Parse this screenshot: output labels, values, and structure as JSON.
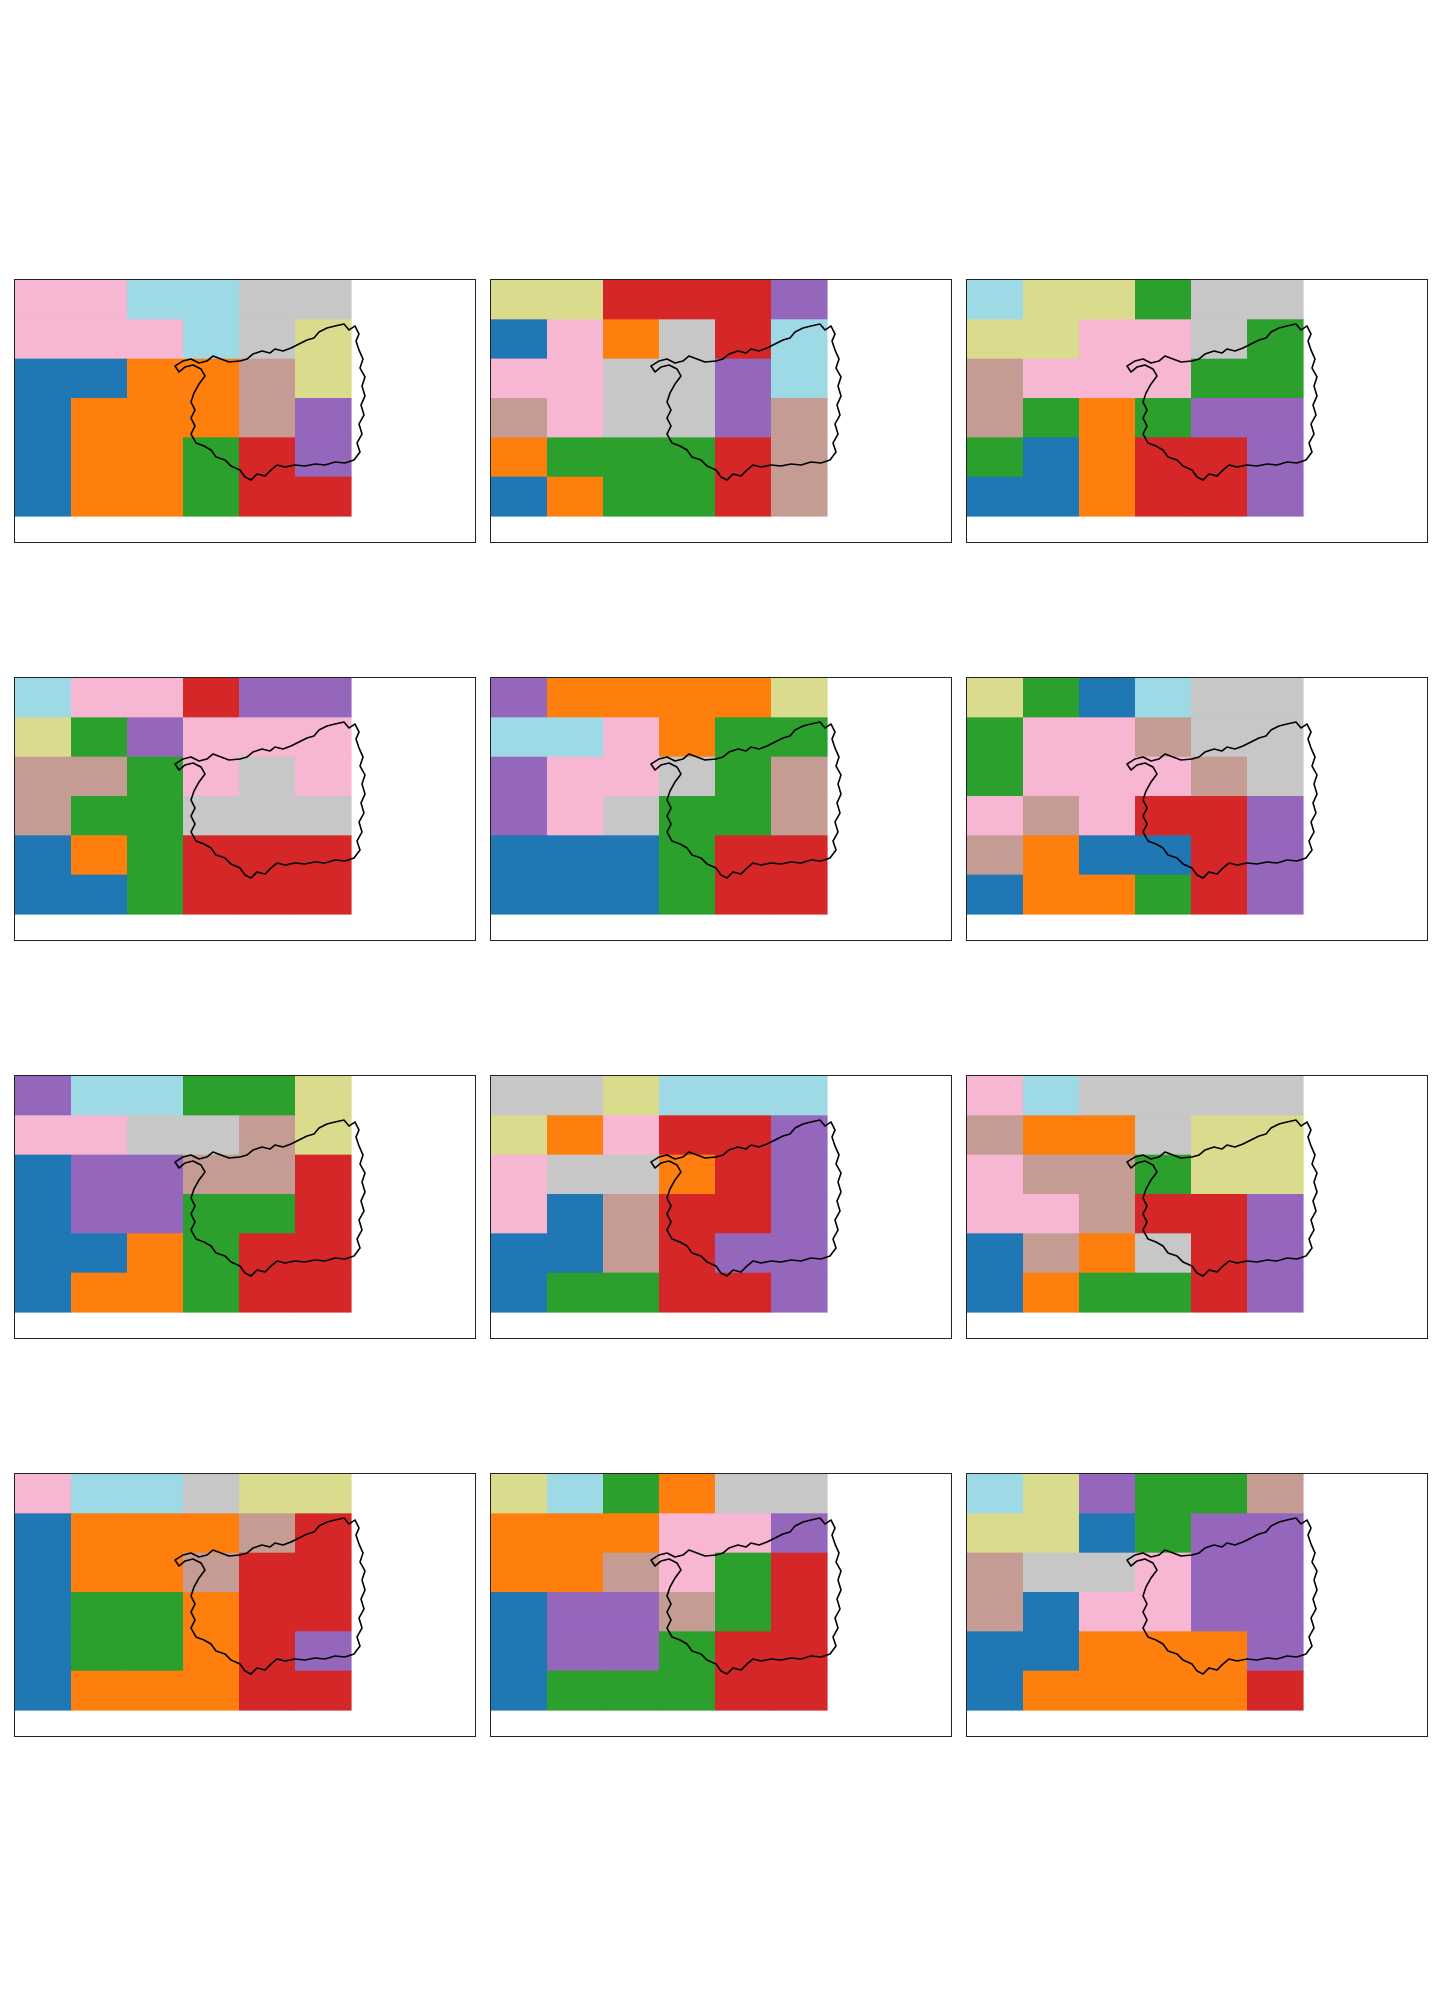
{
  "figure": {
    "rows": 4,
    "cols": 3,
    "outline_color": "#000000",
    "palette": {
      "blue": "#1f77b4",
      "orange": "#ff7f0e",
      "green": "#2ca02c",
      "red": "#d62728",
      "purple": "#9467bd",
      "brown": "#c49c94",
      "pink": "#f7b6d2",
      "gray": "#c7c7c7",
      "olive": "#dbdb8d",
      "cyan": "#9edae5"
    }
  },
  "panels": [
    {
      "colors": [
        "pink",
        "pink",
        "cyan",
        "cyan",
        "gray",
        "gray",
        "pink",
        "pink",
        "pink",
        "cyan",
        "gray",
        "olive",
        "blue",
        "blue",
        "orange",
        "orange",
        "brown",
        "olive",
        "blue",
        "orange",
        "orange",
        "orange",
        "brown",
        "purple",
        "blue",
        "orange",
        "orange",
        "green",
        "red",
        "purple",
        "blue",
        "orange",
        "orange",
        "green",
        "red",
        "red"
      ]
    },
    {
      "colors": [
        "olive",
        "olive",
        "red",
        "red",
        "red",
        "purple",
        "blue",
        "pink",
        "orange",
        "gray",
        "red",
        "cyan",
        "pink",
        "pink",
        "gray",
        "gray",
        "purple",
        "cyan",
        "brown",
        "pink",
        "gray",
        "gray",
        "purple",
        "brown",
        "orange",
        "green",
        "green",
        "green",
        "red",
        "brown",
        "blue",
        "orange",
        "green",
        "green",
        "red",
        "brown"
      ]
    },
    {
      "colors": [
        "cyan",
        "olive",
        "olive",
        "green",
        "gray",
        "gray",
        "olive",
        "olive",
        "pink",
        "pink",
        "gray",
        "green",
        "brown",
        "pink",
        "pink",
        "pink",
        "green",
        "green",
        "brown",
        "green",
        "orange",
        "green",
        "purple",
        "purple",
        "green",
        "blue",
        "orange",
        "red",
        "red",
        "purple",
        "blue",
        "blue",
        "orange",
        "red",
        "red",
        "purple"
      ]
    },
    {
      "colors": [
        "cyan",
        "pink",
        "pink",
        "red",
        "purple",
        "purple",
        "olive",
        "green",
        "purple",
        "pink",
        "pink",
        "pink",
        "brown",
        "brown",
        "green",
        "pink",
        "gray",
        "pink",
        "brown",
        "green",
        "green",
        "gray",
        "gray",
        "gray",
        "blue",
        "orange",
        "green",
        "red",
        "red",
        "red",
        "blue",
        "blue",
        "green",
        "red",
        "red",
        "red"
      ]
    },
    {
      "colors": [
        "purple",
        "orange",
        "orange",
        "orange",
        "orange",
        "olive",
        "cyan",
        "cyan",
        "pink",
        "orange",
        "green",
        "green",
        "purple",
        "pink",
        "pink",
        "gray",
        "green",
        "brown",
        "purple",
        "pink",
        "gray",
        "green",
        "green",
        "brown",
        "blue",
        "blue",
        "blue",
        "green",
        "red",
        "red",
        "blue",
        "blue",
        "blue",
        "green",
        "red",
        "red"
      ]
    },
    {
      "colors": [
        "olive",
        "green",
        "blue",
        "cyan",
        "gray",
        "gray",
        "green",
        "pink",
        "pink",
        "brown",
        "gray",
        "gray",
        "green",
        "pink",
        "pink",
        "pink",
        "brown",
        "gray",
        "pink",
        "brown",
        "pink",
        "red",
        "red",
        "purple",
        "brown",
        "orange",
        "blue",
        "blue",
        "red",
        "purple",
        "blue",
        "orange",
        "orange",
        "green",
        "red",
        "purple"
      ]
    },
    {
      "colors": [
        "purple",
        "cyan",
        "cyan",
        "green",
        "green",
        "olive",
        "pink",
        "pink",
        "gray",
        "gray",
        "brown",
        "olive",
        "blue",
        "purple",
        "purple",
        "brown",
        "brown",
        "red",
        "blue",
        "purple",
        "purple",
        "green",
        "green",
        "red",
        "blue",
        "blue",
        "orange",
        "green",
        "red",
        "red",
        "blue",
        "orange",
        "orange",
        "green",
        "red",
        "red"
      ]
    },
    {
      "colors": [
        "gray",
        "gray",
        "olive",
        "cyan",
        "cyan",
        "cyan",
        "olive",
        "orange",
        "pink",
        "red",
        "red",
        "purple",
        "pink",
        "gray",
        "gray",
        "orange",
        "red",
        "purple",
        "pink",
        "blue",
        "brown",
        "red",
        "red",
        "purple",
        "blue",
        "blue",
        "brown",
        "red",
        "purple",
        "purple",
        "blue",
        "green",
        "green",
        "red",
        "red",
        "purple"
      ]
    },
    {
      "colors": [
        "pink",
        "cyan",
        "gray",
        "gray",
        "gray",
        "gray",
        "brown",
        "orange",
        "orange",
        "gray",
        "olive",
        "olive",
        "pink",
        "brown",
        "brown",
        "green",
        "olive",
        "olive",
        "pink",
        "pink",
        "brown",
        "red",
        "red",
        "purple",
        "blue",
        "brown",
        "orange",
        "gray",
        "red",
        "purple",
        "blue",
        "orange",
        "green",
        "green",
        "red",
        "purple"
      ]
    },
    {
      "colors": [
        "pink",
        "cyan",
        "cyan",
        "gray",
        "olive",
        "olive",
        "blue",
        "orange",
        "orange",
        "orange",
        "brown",
        "red",
        "blue",
        "orange",
        "orange",
        "brown",
        "red",
        "red",
        "blue",
        "green",
        "green",
        "orange",
        "red",
        "red",
        "blue",
        "green",
        "green",
        "orange",
        "red",
        "purple",
        "blue",
        "orange",
        "orange",
        "orange",
        "red",
        "red"
      ]
    },
    {
      "colors": [
        "olive",
        "cyan",
        "green",
        "orange",
        "gray",
        "gray",
        "orange",
        "orange",
        "orange",
        "pink",
        "pink",
        "purple",
        "orange",
        "orange",
        "brown",
        "pink",
        "green",
        "red",
        "blue",
        "purple",
        "purple",
        "brown",
        "green",
        "red",
        "blue",
        "purple",
        "purple",
        "green",
        "red",
        "red",
        "blue",
        "green",
        "green",
        "green",
        "red",
        "red"
      ]
    },
    {
      "colors": [
        "cyan",
        "olive",
        "purple",
        "green",
        "green",
        "brown",
        "olive",
        "olive",
        "blue",
        "green",
        "purple",
        "purple",
        "brown",
        "gray",
        "gray",
        "pink",
        "purple",
        "purple",
        "brown",
        "blue",
        "pink",
        "pink",
        "purple",
        "purple",
        "blue",
        "blue",
        "orange",
        "orange",
        "orange",
        "purple",
        "blue",
        "orange",
        "orange",
        "orange",
        "orange",
        "red"
      ]
    }
  ]
}
